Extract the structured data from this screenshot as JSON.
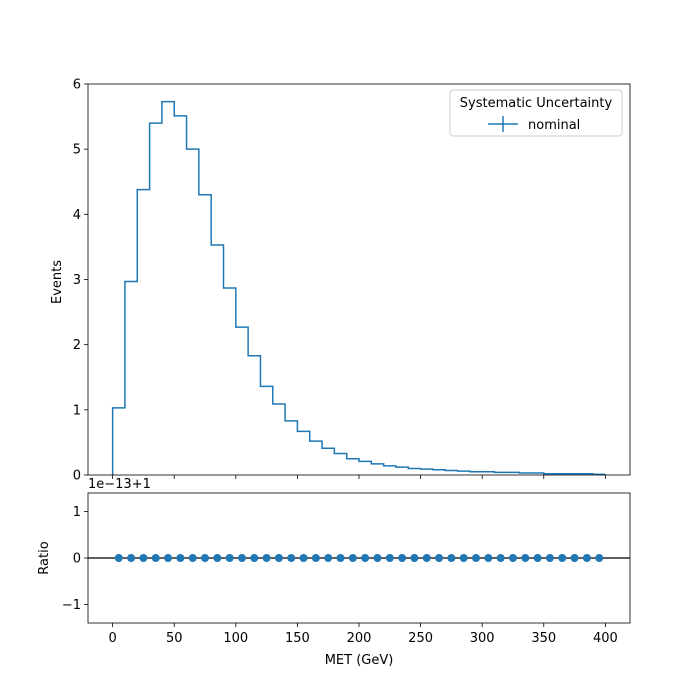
{
  "chart_data": [
    {
      "type": "line",
      "drawstyle": "step",
      "ylabel": "Events",
      "xlim": [
        -20,
        420
      ],
      "ylim": [
        0,
        6
      ],
      "yticks": [
        0,
        1,
        2,
        3,
        4,
        5,
        6
      ],
      "legend": {
        "title": "Systematic Uncertainty",
        "placement": "top-right",
        "entries": [
          "nominal"
        ]
      },
      "bin_edges": [
        0,
        10,
        20,
        30,
        40,
        50,
        60,
        70,
        80,
        90,
        100,
        110,
        120,
        130,
        140,
        150,
        160,
        170,
        180,
        190,
        200,
        210,
        220,
        230,
        240,
        250,
        260,
        270,
        280,
        290,
        300,
        310,
        320,
        330,
        340,
        350,
        360,
        370,
        380,
        390,
        400
      ],
      "series": [
        {
          "name": "nominal",
          "color": "#1f77b4",
          "values": [
            1.03,
            2.97,
            4.38,
            5.4,
            5.73,
            5.51,
            5.0,
            4.3,
            3.53,
            2.87,
            2.27,
            1.83,
            1.36,
            1.09,
            0.83,
            0.67,
            0.52,
            0.41,
            0.33,
            0.25,
            0.21,
            0.17,
            0.14,
            0.12,
            0.1,
            0.09,
            0.08,
            0.07,
            0.06,
            0.05,
            0.05,
            0.04,
            0.04,
            0.03,
            0.03,
            0.02,
            0.02,
            0.02,
            0.02,
            0.01
          ]
        }
      ]
    },
    {
      "type": "scatter",
      "xlabel": "MET (GeV)",
      "ylabel": "Ratio",
      "offset_label": "1e−13+1",
      "xlim": [
        -20,
        420
      ],
      "ylim": [
        -1.4,
        1.4
      ],
      "yticks": [
        -1,
        0,
        1
      ],
      "xticks": [
        0,
        50,
        100,
        150,
        200,
        250,
        300,
        350,
        400
      ],
      "reference_line": 0,
      "series": [
        {
          "color": "#1f77b4",
          "x": [
            5,
            15,
            25,
            35,
            45,
            55,
            65,
            75,
            85,
            95,
            105,
            115,
            125,
            135,
            145,
            155,
            165,
            175,
            185,
            195,
            205,
            215,
            225,
            235,
            245,
            255,
            265,
            275,
            285,
            295,
            305,
            315,
            325,
            335,
            345,
            355,
            365,
            375,
            385,
            395
          ],
          "y": [
            0,
            0,
            0,
            0,
            0,
            0,
            0,
            0,
            0,
            0,
            0,
            0,
            0,
            0,
            0,
            0,
            0,
            0,
            0,
            0,
            0,
            0,
            0,
            0,
            0,
            0,
            0,
            0,
            0,
            0,
            0,
            0,
            0,
            0,
            0,
            0,
            0,
            0,
            0,
            0
          ]
        }
      ]
    }
  ]
}
